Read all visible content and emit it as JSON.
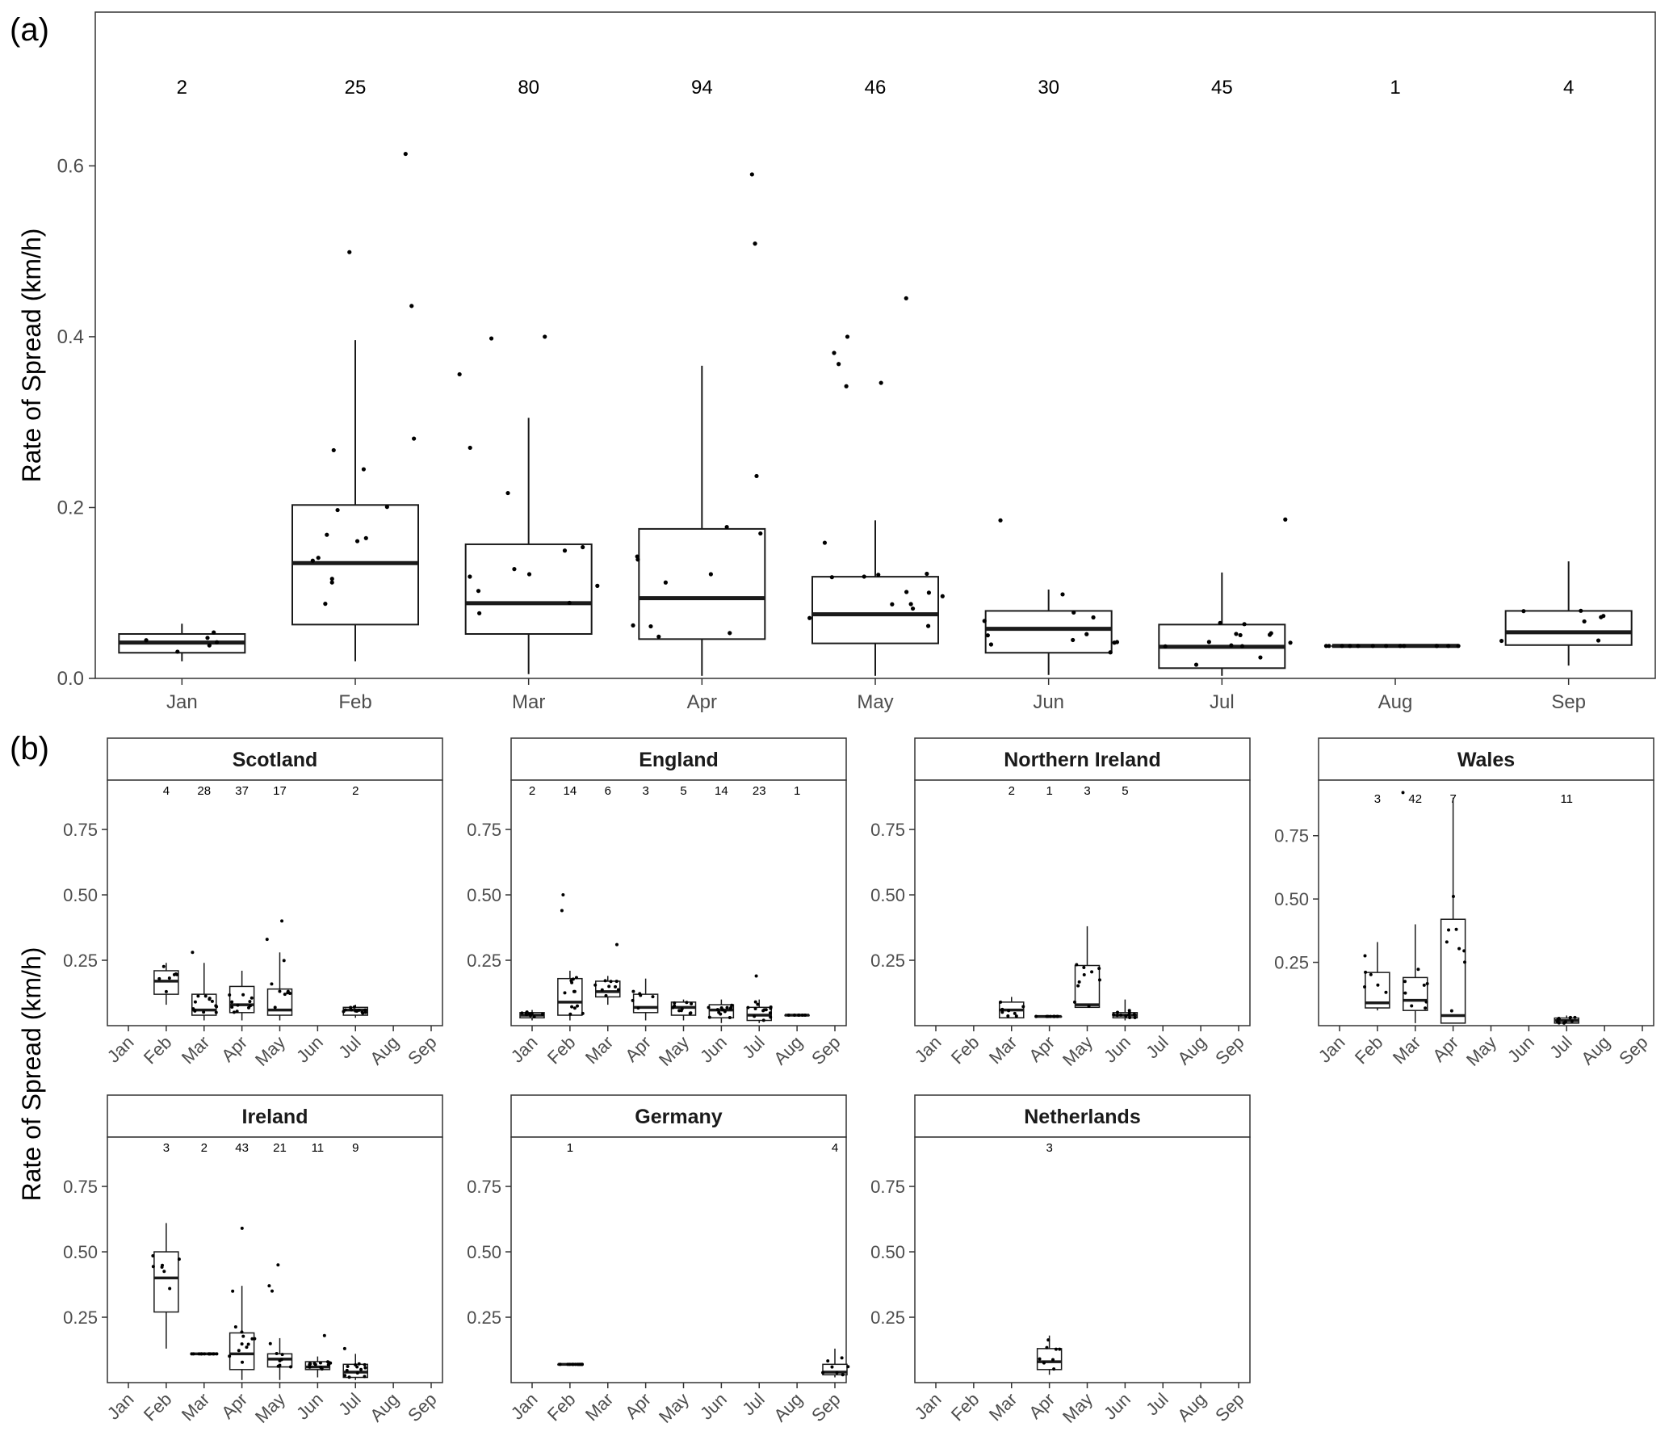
{
  "figure": {
    "panel_a_label": "(a)",
    "panel_b_label": "(b)",
    "ylabel": "Rate of Spread (km/h)"
  },
  "chart_data": [
    {
      "type": "box",
      "panel": "(a)",
      "xlabel": "",
      "ylabel": "Rate of Spread (km/h)",
      "ylim": [
        0,
        0.78
      ],
      "yticks": [
        "0.0",
        "0.2",
        "0.4",
        "0.6"
      ],
      "categories": [
        "Jan",
        "Feb",
        "Mar",
        "Apr",
        "May",
        "Jun",
        "Jul",
        "Aug",
        "Sep"
      ],
      "counts": [
        "2",
        "25",
        "80",
        "94",
        "46",
        "30",
        "45",
        "1",
        "4"
      ],
      "boxes": [
        {
          "min": 0.02,
          "q1": 0.03,
          "median": 0.042,
          "q3": 0.052,
          "max": 0.064
        },
        {
          "min": 0.02,
          "q1": 0.063,
          "median": 0.135,
          "q3": 0.203,
          "max": 0.396
        },
        {
          "min": 0.005,
          "q1": 0.052,
          "median": 0.088,
          "q3": 0.157,
          "max": 0.305
        },
        {
          "min": 0.003,
          "q1": 0.046,
          "median": 0.094,
          "q3": 0.175,
          "max": 0.366
        },
        {
          "min": 0.003,
          "q1": 0.041,
          "median": 0.075,
          "q3": 0.119,
          "max": 0.185
        },
        {
          "min": 0.004,
          "q1": 0.03,
          "median": 0.058,
          "q3": 0.079,
          "max": 0.104
        },
        {
          "min": 0.003,
          "q1": 0.012,
          "median": 0.037,
          "q3": 0.063,
          "max": 0.124
        },
        {
          "min": 0.038,
          "q1": 0.038,
          "median": 0.038,
          "q3": 0.038,
          "max": 0.038
        },
        {
          "min": 0.015,
          "q1": 0.039,
          "median": 0.054,
          "q3": 0.079,
          "max": 0.137
        }
      ],
      "outliers": [
        [],
        [
          0.436,
          0.499,
          0.614
        ],
        [
          0.356,
          0.4,
          0.398
        ],
        [
          0.509,
          0.59
        ],
        [
          0.4,
          0.346,
          0.381,
          0.445,
          0.342,
          0.368
        ],
        [
          0.185
        ],
        [
          0.186
        ],
        [],
        []
      ]
    },
    {
      "type": "box",
      "panel": "(b)",
      "ylabel": "Rate of Spread (km/h)",
      "categories": [
        "Jan",
        "Feb",
        "Mar",
        "Apr",
        "May",
        "Jun",
        "Jul",
        "Aug",
        "Sep"
      ],
      "yticks": [
        "0.25",
        "0.50",
        "0.75"
      ],
      "facets": [
        {
          "title": "Scotland",
          "ymax": 0.92,
          "counts": [
            "",
            "4",
            "28",
            "37",
            "17",
            "",
            "2",
            "",
            ""
          ],
          "boxes": [
            null,
            {
              "min": 0.08,
              "q1": 0.12,
              "median": 0.17,
              "q3": 0.21,
              "max": 0.24
            },
            {
              "min": 0.02,
              "q1": 0.04,
              "median": 0.06,
              "q3": 0.12,
              "max": 0.24
            },
            {
              "min": 0.02,
              "q1": 0.05,
              "median": 0.08,
              "q3": 0.15,
              "max": 0.21
            },
            {
              "min": 0.02,
              "q1": 0.04,
              "median": 0.06,
              "q3": 0.14,
              "max": 0.28
            },
            null,
            {
              "min": 0.03,
              "q1": 0.04,
              "median": 0.06,
              "q3": 0.07,
              "max": 0.08
            },
            null,
            null
          ],
          "outliers": [
            [],
            [],
            [
              0.28
            ],
            [],
            [
              0.33,
              0.4
            ],
            [],
            [],
            [],
            []
          ]
        },
        {
          "title": "England",
          "ymax": 0.92,
          "counts": [
            "2",
            "14",
            "6",
            "3",
            "5",
            "14",
            "23",
            "1",
            ""
          ],
          "boxes": [
            {
              "min": 0.02,
              "q1": 0.03,
              "median": 0.04,
              "q3": 0.05,
              "max": 0.06
            },
            {
              "min": 0.02,
              "q1": 0.04,
              "median": 0.09,
              "q3": 0.18,
              "max": 0.21
            },
            {
              "min": 0.08,
              "q1": 0.11,
              "median": 0.13,
              "q3": 0.17,
              "max": 0.19
            },
            {
              "min": 0.02,
              "q1": 0.05,
              "median": 0.07,
              "q3": 0.12,
              "max": 0.18
            },
            {
              "min": 0.02,
              "q1": 0.04,
              "median": 0.07,
              "q3": 0.09,
              "max": 0.1
            },
            {
              "min": 0.01,
              "q1": 0.03,
              "median": 0.06,
              "q3": 0.08,
              "max": 0.1
            },
            {
              "min": 0.01,
              "q1": 0.02,
              "median": 0.04,
              "q3": 0.07,
              "max": 0.1
            },
            {
              "min": 0.04,
              "q1": 0.04,
              "median": 0.04,
              "q3": 0.04,
              "max": 0.04
            },
            null
          ],
          "outliers": [
            [],
            [
              0.44,
              0.5
            ],
            [
              0.31
            ],
            [],
            [],
            [],
            [
              0.19
            ],
            [],
            []
          ]
        },
        {
          "title": "Northern Ireland",
          "ymax": 0.92,
          "counts": [
            "",
            "",
            "2",
            "1",
            "3",
            "5",
            "",
            "",
            ""
          ],
          "boxes": [
            null,
            null,
            {
              "min": 0.03,
              "q1": 0.03,
              "median": 0.06,
              "q3": 0.09,
              "max": 0.11
            },
            {
              "min": 0.035,
              "q1": 0.035,
              "median": 0.035,
              "q3": 0.035,
              "max": 0.035
            },
            {
              "min": 0.07,
              "q1": 0.07,
              "median": 0.08,
              "q3": 0.23,
              "max": 0.38
            },
            {
              "min": 0.02,
              "q1": 0.03,
              "median": 0.04,
              "q3": 0.05,
              "max": 0.1
            },
            null,
            null,
            null
          ],
          "outliers": [
            [],
            [],
            [],
            [],
            [],
            [],
            [],
            [],
            []
          ]
        },
        {
          "title": "Wales",
          "ymax": 0.95,
          "counts": [
            "",
            "3",
            "42",
            "7",
            "",
            "",
            "11",
            "",
            ""
          ],
          "boxes": [
            null,
            {
              "min": 0.06,
              "q1": 0.07,
              "median": 0.09,
              "q3": 0.21,
              "max": 0.33
            },
            {
              "min": 0.01,
              "q1": 0.06,
              "median": 0.1,
              "q3": 0.19,
              "max": 0.4
            },
            {
              "min": 0.01,
              "q1": 0.01,
              "median": 0.04,
              "q3": 0.42,
              "max": 0.9
            },
            null,
            null,
            {
              "min": 0.01,
              "q1": 0.01,
              "median": 0.02,
              "q3": 0.03,
              "max": 0.04
            },
            null,
            null
          ],
          "outliers": [
            [],
            [],
            [
              0.92
            ],
            [
              0.51
            ],
            [],
            [],
            [],
            [],
            []
          ]
        },
        {
          "title": "Ireland",
          "ymax": 0.92,
          "counts": [
            "",
            "3",
            "2",
            "43",
            "21",
            "11",
            "9",
            "",
            ""
          ],
          "boxes": [
            null,
            {
              "min": 0.13,
              "q1": 0.27,
              "median": 0.4,
              "q3": 0.5,
              "max": 0.61
            },
            {
              "min": 0.11,
              "q1": 0.11,
              "median": 0.11,
              "q3": 0.11,
              "max": 0.11
            },
            {
              "min": 0.01,
              "q1": 0.05,
              "median": 0.11,
              "q3": 0.19,
              "max": 0.37
            },
            {
              "min": 0.01,
              "q1": 0.06,
              "median": 0.09,
              "q3": 0.11,
              "max": 0.17
            },
            {
              "min": 0.02,
              "q1": 0.05,
              "median": 0.06,
              "q3": 0.08,
              "max": 0.1
            },
            {
              "min": 0.01,
              "q1": 0.02,
              "median": 0.04,
              "q3": 0.07,
              "max": 0.11
            },
            null,
            null
          ],
          "outliers": [
            [],
            [],
            [],
            [
              0.59
            ],
            [
              0.35,
              0.37,
              0.45
            ],
            [
              0.18
            ],
            [
              0.13
            ],
            [],
            []
          ]
        },
        {
          "title": "Germany",
          "ymax": 0.92,
          "counts": [
            "",
            "1",
            "",
            "",
            "",
            "",
            "",
            "",
            "4"
          ],
          "boxes": [
            null,
            {
              "min": 0.07,
              "q1": 0.07,
              "median": 0.07,
              "q3": 0.07,
              "max": 0.07
            },
            null,
            null,
            null,
            null,
            null,
            null,
            {
              "min": 0.02,
              "q1": 0.03,
              "median": 0.04,
              "q3": 0.07,
              "max": 0.13
            }
          ],
          "outliers": [
            [],
            [],
            [],
            [],
            [],
            [],
            [],
            [],
            []
          ]
        },
        {
          "title": "Netherlands",
          "ymax": 0.92,
          "counts": [
            "",
            "",
            "",
            "3",
            "",
            "",
            "",
            "",
            ""
          ],
          "boxes": [
            null,
            null,
            null,
            {
              "min": 0.03,
              "q1": 0.05,
              "median": 0.08,
              "q3": 0.13,
              "max": 0.18
            },
            null,
            null,
            null,
            null,
            null
          ],
          "outliers": [
            [],
            [],
            [],
            [],
            [],
            [],
            [],
            [],
            []
          ]
        }
      ]
    }
  ]
}
